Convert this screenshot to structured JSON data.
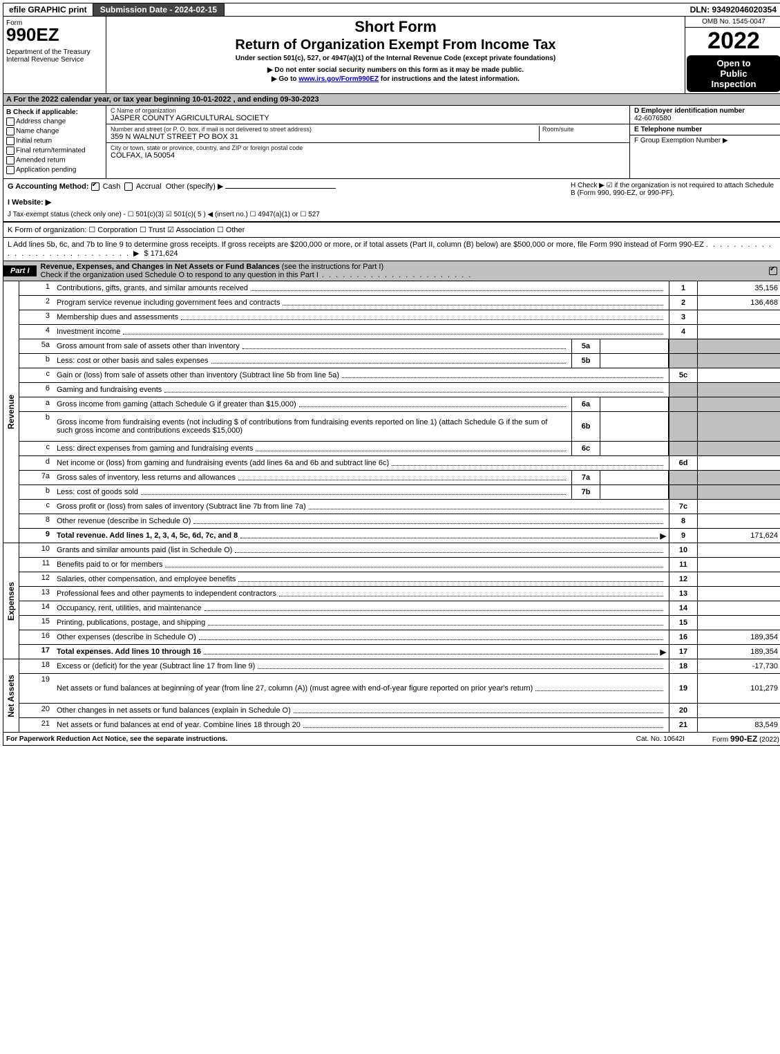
{
  "top": {
    "efile": "efile GRAPHIC print",
    "submission": "Submission Date - 2024-02-15",
    "dln": "DLN: 93492046020354"
  },
  "header": {
    "form_label": "Form",
    "form_no": "990EZ",
    "dept": "Department of the Treasury",
    "irs": "Internal Revenue Service",
    "short_form": "Short Form",
    "main_title": "Return of Organization Exempt From Income Tax",
    "sub1": "Under section 501(c), 527, or 4947(a)(1) of the Internal Revenue Code (except private foundations)",
    "sub2": "Do not enter social security numbers on this form as it may be made public.",
    "sub3_pre": "Go to ",
    "sub3_link": "www.irs.gov/Form990EZ",
    "sub3_post": " for instructions and the latest information.",
    "omb": "OMB No. 1545-0047",
    "year": "2022",
    "open1": "Open to",
    "open2": "Public",
    "open3": "Inspection"
  },
  "A": "A  For the 2022 calendar year, or tax year beginning 10-01-2022  , and ending 09-30-2023",
  "B": {
    "title": "B  Check if applicable:",
    "opts": [
      "Address change",
      "Name change",
      "Initial return",
      "Final return/terminated",
      "Amended return",
      "Application pending"
    ]
  },
  "C": {
    "name_lbl": "C Name of organization",
    "name": "JASPER COUNTY AGRICULTURAL SOCIETY",
    "street_lbl": "Number and street (or P. O. box, if mail is not delivered to street address)",
    "room_lbl": "Room/suite",
    "street": "359 N WALNUT STREET PO BOX 31",
    "city_lbl": "City or town, state or province, country, and ZIP or foreign postal code",
    "city": "COLFAX, IA  50054"
  },
  "D": {
    "ein_lbl": "D Employer identification number",
    "ein": "42-6076580",
    "tel_lbl": "E Telephone number",
    "group_lbl": "F Group Exemption Number  ▶"
  },
  "G": {
    "label": "G Accounting Method:",
    "cash": "Cash",
    "accrual": "Accrual",
    "other": "Other (specify) ▶"
  },
  "H": "H  Check ▶ ☑ if the organization is not required to attach Schedule B (Form 990, 990-EZ, or 990-PF).",
  "I": "I Website: ▶",
  "J": "J Tax-exempt status (check only one) - ☐ 501(c)(3)  ☑ 501(c)( 5 ) ◀ (insert no.)  ☐ 4947(a)(1) or  ☐ 527",
  "K": "K Form of organization:   ☐ Corporation   ☐ Trust   ☑ Association   ☐ Other",
  "L": {
    "text": "L Add lines 5b, 6c, and 7b to line 9 to determine gross receipts. If gross receipts are $200,000 or more, or if total assets (Part II, column (B) below) are $500,000 or more, file Form 990 instead of Form 990-EZ",
    "amount": "$ 171,624"
  },
  "partI": {
    "tab": "Part I",
    "title": "Revenue, Expenses, and Changes in Net Assets or Fund Balances",
    "note": " (see the instructions for Part I)",
    "check_line": "Check if the organization used Schedule O to respond to any question in this Part I"
  },
  "revenue_lines": [
    {
      "no": "1",
      "desc": "Contributions, gifts, grants, and similar amounts received",
      "rno": "1",
      "amt": "35,156"
    },
    {
      "no": "2",
      "desc": "Program service revenue including government fees and contracts",
      "rno": "2",
      "amt": "136,468"
    },
    {
      "no": "3",
      "desc": "Membership dues and assessments",
      "rno": "3",
      "amt": ""
    },
    {
      "no": "4",
      "desc": "Investment income",
      "rno": "4",
      "amt": ""
    },
    {
      "no": "5a",
      "desc": "Gross amount from sale of assets other than inventory",
      "mini": "5a",
      "shade": true
    },
    {
      "no": "b",
      "desc": "Less: cost or other basis and sales expenses",
      "mini": "5b",
      "shade": true
    },
    {
      "no": "c",
      "desc": "Gain or (loss) from sale of assets other than inventory (Subtract line 5b from line 5a)",
      "rno": "5c",
      "amt": ""
    },
    {
      "no": "6",
      "desc": "Gaming and fundraising events",
      "shade": true,
      "noamt": true
    },
    {
      "no": "a",
      "desc": "Gross income from gaming (attach Schedule G if greater than $15,000)",
      "mini": "6a",
      "shade": true
    },
    {
      "no": "b",
      "desc": "Gross income from fundraising events (not including $                      of contributions from fundraising events reported on line 1) (attach Schedule G if the sum of such gross income and contributions exceeds $15,000)",
      "mini": "6b",
      "shade": true,
      "tall": true
    },
    {
      "no": "c",
      "desc": "Less: direct expenses from gaming and fundraising events",
      "mini": "6c",
      "shade": true
    },
    {
      "no": "d",
      "desc": "Net income or (loss) from gaming and fundraising events (add lines 6a and 6b and subtract line 6c)",
      "rno": "6d",
      "amt": ""
    },
    {
      "no": "7a",
      "desc": "Gross sales of inventory, less returns and allowances",
      "mini": "7a",
      "shade": true
    },
    {
      "no": "b",
      "desc": "Less: cost of goods sold",
      "mini": "7b",
      "shade": true
    },
    {
      "no": "c",
      "desc": "Gross profit or (loss) from sales of inventory (Subtract line 7b from line 7a)",
      "rno": "7c",
      "amt": ""
    },
    {
      "no": "8",
      "desc": "Other revenue (describe in Schedule O)",
      "rno": "8",
      "amt": ""
    },
    {
      "no": "9",
      "desc": "Total revenue. Add lines 1, 2, 3, 4, 5c, 6d, 7c, and 8",
      "rno": "9",
      "amt": "171,624",
      "bold": true,
      "arrow": true
    }
  ],
  "expense_lines": [
    {
      "no": "10",
      "desc": "Grants and similar amounts paid (list in Schedule O)",
      "rno": "10",
      "amt": ""
    },
    {
      "no": "11",
      "desc": "Benefits paid to or for members",
      "rno": "11",
      "amt": ""
    },
    {
      "no": "12",
      "desc": "Salaries, other compensation, and employee benefits",
      "rno": "12",
      "amt": ""
    },
    {
      "no": "13",
      "desc": "Professional fees and other payments to independent contractors",
      "rno": "13",
      "amt": ""
    },
    {
      "no": "14",
      "desc": "Occupancy, rent, utilities, and maintenance",
      "rno": "14",
      "amt": ""
    },
    {
      "no": "15",
      "desc": "Printing, publications, postage, and shipping",
      "rno": "15",
      "amt": ""
    },
    {
      "no": "16",
      "desc": "Other expenses (describe in Schedule O)",
      "rno": "16",
      "amt": "189,354"
    },
    {
      "no": "17",
      "desc": "Total expenses. Add lines 10 through 16",
      "rno": "17",
      "amt": "189,354",
      "bold": true,
      "arrow": true
    }
  ],
  "netasset_lines": [
    {
      "no": "18",
      "desc": "Excess or (deficit) for the year (Subtract line 17 from line 9)",
      "rno": "18",
      "amt": "-17,730"
    },
    {
      "no": "19",
      "desc": "Net assets or fund balances at beginning of year (from line 27, column (A)) (must agree with end-of-year figure reported on prior year's return)",
      "rno": "19",
      "amt": "101,279",
      "tall": true
    },
    {
      "no": "20",
      "desc": "Other changes in net assets or fund balances (explain in Schedule O)",
      "rno": "20",
      "amt": ""
    },
    {
      "no": "21",
      "desc": "Net assets or fund balances at end of year. Combine lines 18 through 20",
      "rno": "21",
      "amt": "83,549"
    }
  ],
  "side_labels": {
    "rev": "Revenue",
    "exp": "Expenses",
    "net": "Net Assets"
  },
  "footer": {
    "left": "For Paperwork Reduction Act Notice, see the separate instructions.",
    "mid": "Cat. No. 10642I",
    "right_pre": "Form ",
    "right_form": "990-EZ",
    "right_year": " (2022)"
  }
}
